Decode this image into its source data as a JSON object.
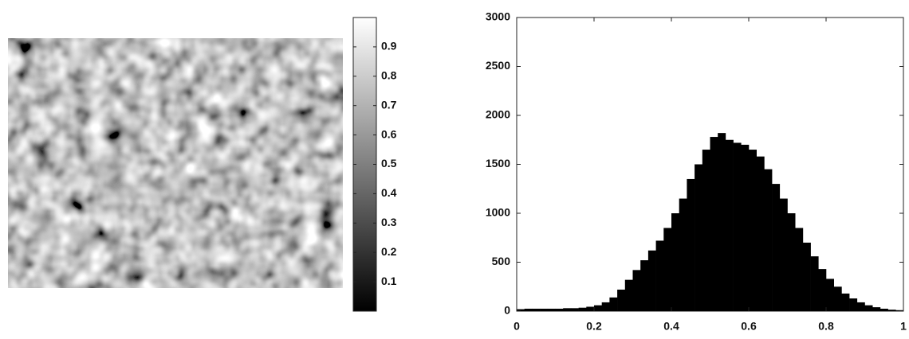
{
  "chart_data": [
    {
      "type": "image",
      "clim": [
        0,
        1
      ],
      "cticks": [
        0.1,
        0.2,
        0.3,
        0.4,
        0.5,
        0.6,
        0.7,
        0.8,
        0.9
      ]
    },
    {
      "type": "histogram",
      "color": "#000000",
      "bins": [
        0,
        0.02,
        0.04,
        0.06,
        0.08,
        0.1,
        0.12,
        0.14,
        0.16,
        0.18,
        0.2,
        0.22,
        0.24,
        0.26,
        0.28,
        0.3,
        0.32,
        0.34,
        0.36,
        0.38,
        0.4,
        0.42,
        0.44,
        0.46,
        0.48,
        0.5,
        0.52,
        0.54,
        0.56,
        0.58,
        0.6,
        0.62,
        0.64,
        0.66,
        0.68,
        0.7,
        0.72,
        0.74,
        0.76,
        0.78,
        0.8,
        0.82,
        0.84,
        0.86,
        0.88,
        0.9,
        0.92,
        0.94,
        0.96,
        0.98,
        1
      ],
      "values": [
        20,
        25,
        25,
        25,
        25,
        25,
        30,
        30,
        35,
        45,
        60,
        90,
        140,
        220,
        320,
        420,
        520,
        620,
        720,
        850,
        1000,
        1150,
        1350,
        1500,
        1650,
        1780,
        1820,
        1750,
        1720,
        1700,
        1650,
        1580,
        1450,
        1300,
        1150,
        1000,
        850,
        700,
        560,
        430,
        330,
        250,
        180,
        130,
        90,
        60,
        40,
        25,
        15,
        10
      ],
      "xlim": [
        0,
        1
      ],
      "ylim": [
        0,
        3000
      ],
      "xticks": [
        0,
        0.2,
        0.4,
        0.6,
        0.8,
        1
      ],
      "yticks": [
        0,
        500,
        1000,
        1500,
        2000,
        2500,
        3000
      ]
    }
  ]
}
